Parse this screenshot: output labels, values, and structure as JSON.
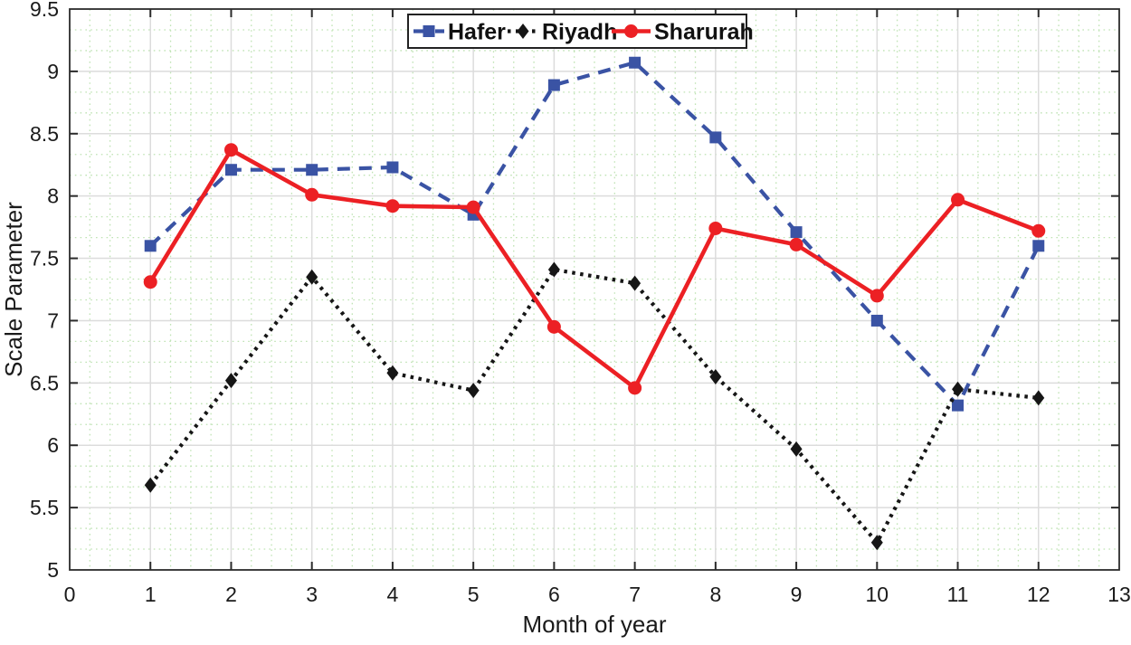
{
  "figure": {
    "background": "#ffffff"
  },
  "chart_data": {
    "type": "line",
    "title": "",
    "xlabel": "Month of year",
    "ylabel": "Scale Parameter",
    "xlim": [
      0,
      13
    ],
    "ylim": [
      5,
      9.5
    ],
    "xticks": [
      0,
      1,
      2,
      3,
      4,
      5,
      6,
      7,
      8,
      9,
      10,
      11,
      12,
      13
    ],
    "yticks": [
      5,
      5.5,
      6,
      6.5,
      7,
      7.5,
      8,
      8.5,
      9,
      9.5
    ],
    "grid": {
      "major": true,
      "minor": true,
      "major_color": "#dcdcdc",
      "minor_color": "#bfe3b4",
      "minor_x_subdivisions": 4,
      "minor_y_subdivisions": 3
    },
    "legend": {
      "position": "top-center",
      "border_color": "#222222",
      "background": "#ffffff"
    },
    "x": [
      1,
      2,
      3,
      4,
      5,
      6,
      7,
      8,
      9,
      10,
      11,
      12
    ],
    "series": [
      {
        "name": "Hafer",
        "color": "#3a53a4",
        "line_style": "dashed",
        "marker": "square",
        "values": [
          7.6,
          8.21,
          8.21,
          8.23,
          7.85,
          8.89,
          9.07,
          8.47,
          7.71,
          7.0,
          6.32,
          7.6
        ]
      },
      {
        "name": "Riyadh",
        "color": "#161616",
        "line_style": "dotted",
        "marker": "diamond",
        "values": [
          5.68,
          6.52,
          7.35,
          6.58,
          6.44,
          7.41,
          7.3,
          6.55,
          5.97,
          5.22,
          6.45,
          6.38
        ]
      },
      {
        "name": "Sharurah",
        "color": "#ec2024",
        "line_style": "solid",
        "marker": "circle",
        "values": [
          7.31,
          8.37,
          8.01,
          7.92,
          7.91,
          6.95,
          6.46,
          7.74,
          7.61,
          7.2,
          7.97,
          7.72
        ]
      }
    ],
    "axis_color": "#2b2b2b",
    "tick_label_color": "#1a1a1a"
  }
}
